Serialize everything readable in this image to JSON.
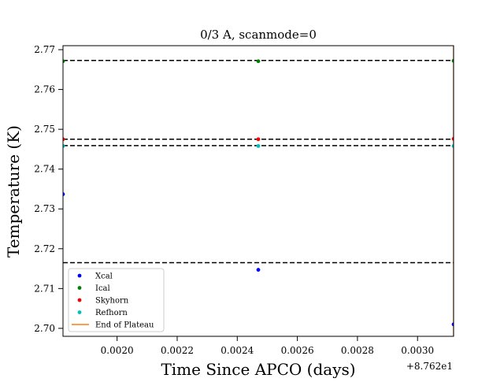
{
  "chart_data": {
    "type": "scatter",
    "title": "0/3 A, scanmode=0",
    "xlabel": "Time Since APCO (days)",
    "ylabel": "Temperature (K)",
    "x_offset_label": "+8.762e1",
    "xlim": [
      0.00182,
      0.00312
    ],
    "ylim": [
      2.698,
      2.771
    ],
    "x_ticks": [
      0.002,
      0.0022,
      0.0024,
      0.0026,
      0.0028,
      0.003
    ],
    "x_tick_labels": [
      "0.0020",
      "0.0022",
      "0.0024",
      "0.0026",
      "0.0028",
      "0.0030"
    ],
    "y_ticks": [
      2.7,
      2.71,
      2.72,
      2.73,
      2.74,
      2.75,
      2.76,
      2.77
    ],
    "y_tick_labels": [
      "2.70",
      "2.71",
      "2.72",
      "2.73",
      "2.74",
      "2.75",
      "2.76",
      "2.77"
    ],
    "series": [
      {
        "name": "Xcal",
        "color": "#0000ff",
        "x": [
          0.00182,
          0.00247,
          0.00312
        ],
        "y": [
          2.7337,
          2.7147,
          2.701
        ]
      },
      {
        "name": "Ical",
        "color": "#008000",
        "x": [
          0.00182,
          0.00247,
          0.00312
        ],
        "y": [
          2.7671,
          2.7671,
          2.7672
        ]
      },
      {
        "name": "Skyhorn",
        "color": "#ff0000",
        "x": [
          0.00182,
          0.00247,
          0.00312
        ],
        "y": [
          2.7475,
          2.7475,
          2.7476
        ]
      },
      {
        "name": "Refhorn",
        "color": "#00bfbf",
        "x": [
          0.00182,
          0.00247,
          0.00312
        ],
        "y": [
          2.7458,
          2.7458,
          2.7458
        ]
      }
    ],
    "hlines": [
      2.7673,
      2.7475,
      2.7459,
      2.7165
    ],
    "hline_color": "#000000",
    "vline": {
      "name": "End of Plateau",
      "x": 0.00312,
      "color": "#ff7f0e"
    },
    "legend": {
      "position": "lower-left",
      "entries": [
        "Xcal",
        "Ical",
        "Skyhorn",
        "Refhorn",
        "End of Plateau"
      ]
    }
  }
}
